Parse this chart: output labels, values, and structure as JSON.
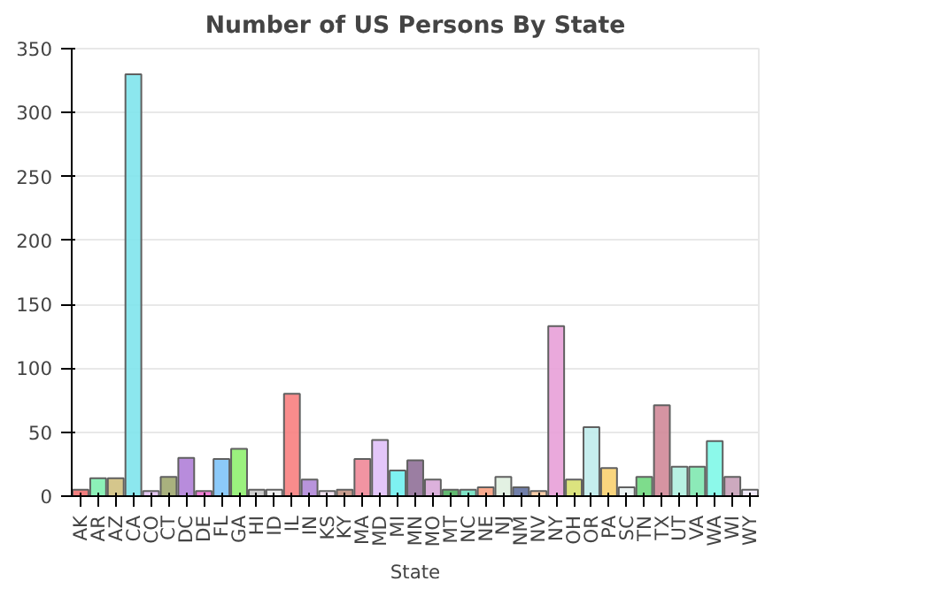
{
  "chart_data": {
    "type": "bar",
    "title": "Number of US Persons By State",
    "xlabel": "State",
    "categories": [
      "AK",
      "AR",
      "AZ",
      "CA",
      "CO",
      "CT",
      "DC",
      "DE",
      "FL",
      "GA",
      "HI",
      "ID",
      "IL",
      "IN",
      "KS",
      "KY",
      "MA",
      "MD",
      "MI",
      "MN",
      "MO",
      "MT",
      "NC",
      "NE",
      "NJ",
      "NM",
      "NV",
      "NY",
      "OH",
      "OR",
      "PA",
      "SC",
      "TN",
      "TX",
      "UT",
      "VA",
      "WA",
      "WI",
      "WY"
    ],
    "values": [
      5,
      14,
      14,
      330,
      4,
      15,
      30,
      4,
      29,
      37,
      5,
      5,
      80,
      13,
      4,
      5,
      29,
      44,
      20,
      28,
      13,
      5,
      5,
      7,
      15,
      7,
      4,
      133,
      13,
      54,
      22,
      7,
      15,
      71,
      23,
      23,
      43,
      15,
      5
    ],
    "colors": [
      "#f07070",
      "#80f0b0",
      "#d0c080",
      "#80e4ec",
      "#e0c0f0",
      "#a0a870",
      "#b080d8",
      "#f070d0",
      "#80c4f8",
      "#90f070",
      "#c8c8c8",
      "#f0f0f0",
      "#f88080",
      "#b088d8",
      "#f0e0f0",
      "#c09080",
      "#f08898",
      "#e0c0f8",
      "#70f0f0",
      "#907098",
      "#d8a8d8",
      "#50b060",
      "#70e0c0",
      "#f8a080",
      "#e0f0e0",
      "#6070a0",
      "#f8c8a0",
      "#e8a0d8",
      "#d8e070",
      "#c0ecec",
      "#f8d070",
      "#e8f0f0",
      "#70d880",
      "#d08898",
      "#b0f0e0",
      "#80e8b0",
      "#80f8e8",
      "#c8a0b8",
      "#f0e8f8"
    ],
    "ylim": [
      0,
      350
    ],
    "yticks": [
      0,
      50,
      100,
      150,
      200,
      250,
      300,
      350
    ],
    "grid": "y"
  }
}
